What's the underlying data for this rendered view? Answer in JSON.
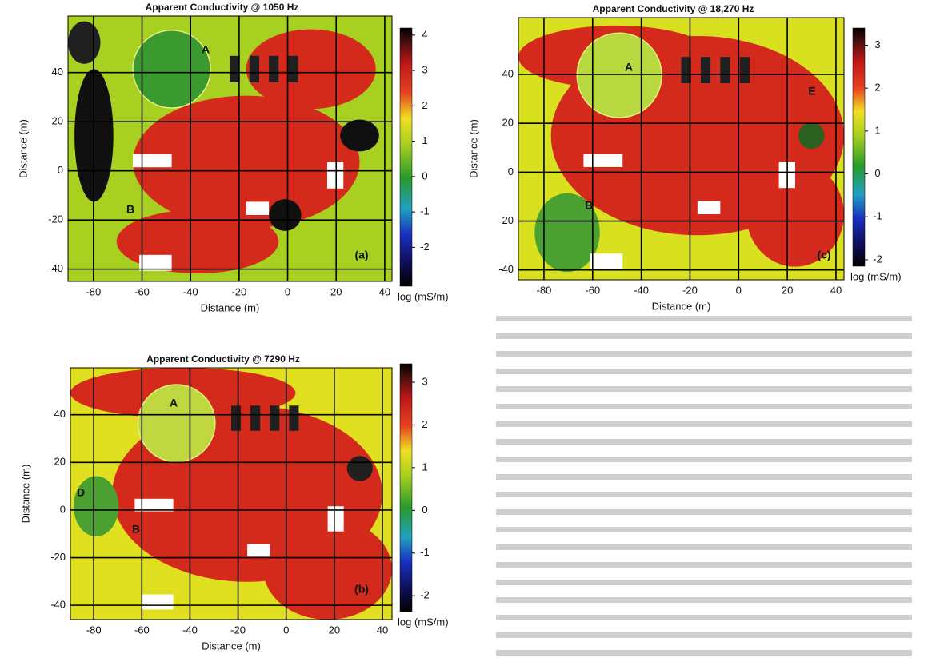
{
  "figures": [
    {
      "title": "Apparent Conductivity @ 1050 Hz",
      "panel_label": "(a)",
      "xlabel": "Distance (m)",
      "ylabel": "Distance (m)",
      "xlim": [
        -90.5,
        43
      ],
      "ylim": [
        -45,
        63
      ],
      "xticks": [
        -80,
        -60,
        -40,
        -20,
        0,
        20,
        40
      ],
      "yticks": [
        -40,
        -20,
        0,
        20,
        40
      ],
      "colorbar": {
        "lim": [
          -3.1,
          4.2
        ],
        "ticks": [
          -2,
          -1,
          0,
          1,
          2,
          3,
          4
        ],
        "label": "log (mS/m)"
      },
      "annotations": [
        "A",
        "B"
      ]
    },
    {
      "title": "Apparent Conductivity @ 18,270 Hz",
      "panel_label": "(c)",
      "xlabel": "Distance (m)",
      "ylabel": "Distance (m)",
      "xlim": [
        -90.5,
        43.3
      ],
      "ylim": [
        -44,
        63.2
      ],
      "xticks": [
        -80,
        -60,
        -40,
        -20,
        0,
        20,
        40
      ],
      "yticks": [
        -40,
        -20,
        0,
        20,
        40
      ],
      "colorbar": {
        "lim": [
          -2.15,
          3.4
        ],
        "ticks": [
          -2,
          -1,
          0,
          1,
          2,
          3
        ],
        "label": "log (mS/m)"
      },
      "annotations": [
        "A",
        "B",
        "E"
      ]
    },
    {
      "title": "Apparent Conductivity @ 7290 Hz",
      "panel_label": "(b)",
      "xlabel": "Distance (m)",
      "ylabel": "Distance (m)",
      "xlim": [
        -89.7,
        44
      ],
      "ylim": [
        -46,
        59.7
      ],
      "xticks": [
        -80,
        -60,
        -40,
        -20,
        0,
        20,
        40
      ],
      "yticks": [
        -40,
        -20,
        0,
        20,
        40
      ],
      "colorbar": {
        "lim": [
          -2.37,
          3.43
        ],
        "ticks": [
          -2,
          -1,
          0,
          1,
          2,
          3
        ],
        "label": "log (mS/m)"
      },
      "annotations": [
        "A",
        "B",
        "D"
      ]
    }
  ]
}
